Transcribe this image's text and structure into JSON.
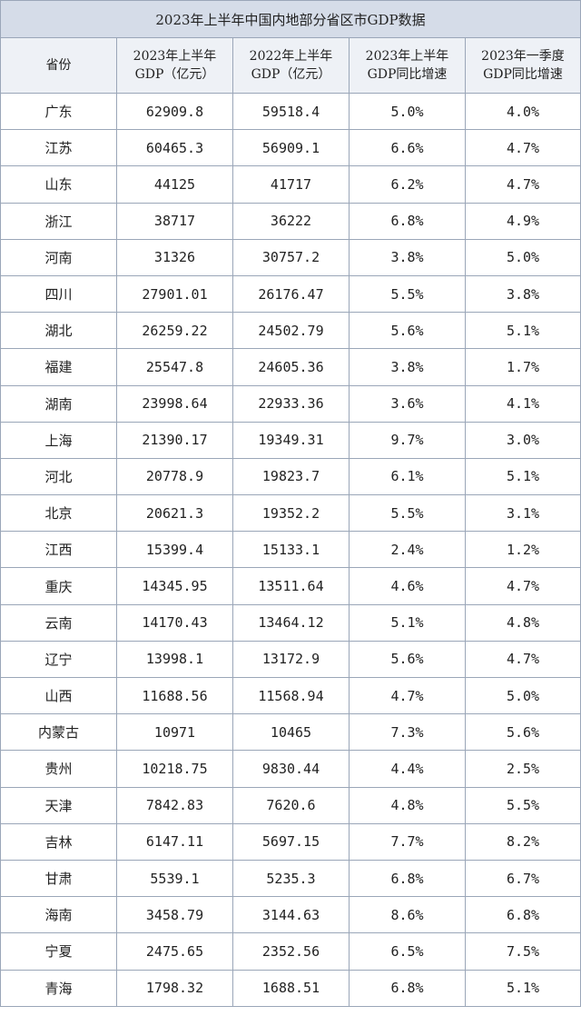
{
  "table": {
    "title": "2023年上半年中国内地部分省区市GDP数据",
    "headers": [
      {
        "line1": "省份",
        "line2": ""
      },
      {
        "line1": "2023年上半年",
        "line2": "GDP（亿元）"
      },
      {
        "line1": "2022年上半年",
        "line2": "GDP（亿元）"
      },
      {
        "line1": "2023年上半年",
        "line2": "GDP同比增速"
      },
      {
        "line1": "2023年一季度",
        "line2": "GDP同比增速"
      }
    ],
    "rows": [
      [
        "广东",
        "62909.8",
        "59518.4",
        "5.0%",
        "4.0%"
      ],
      [
        "江苏",
        "60465.3",
        "56909.1",
        "6.6%",
        "4.7%"
      ],
      [
        "山东",
        "44125",
        "41717",
        "6.2%",
        "4.7%"
      ],
      [
        "浙江",
        "38717",
        "36222",
        "6.8%",
        "4.9%"
      ],
      [
        "河南",
        "31326",
        "30757.2",
        "3.8%",
        "5.0%"
      ],
      [
        "四川",
        "27901.01",
        "26176.47",
        "5.5%",
        "3.8%"
      ],
      [
        "湖北",
        "26259.22",
        "24502.79",
        "5.6%",
        "5.1%"
      ],
      [
        "福建",
        "25547.8",
        "24605.36",
        "3.8%",
        "1.7%"
      ],
      [
        "湖南",
        "23998.64",
        "22933.36",
        "3.6%",
        "4.1%"
      ],
      [
        "上海",
        "21390.17",
        "19349.31",
        "9.7%",
        "3.0%"
      ],
      [
        "河北",
        "20778.9",
        "19823.7",
        "6.1%",
        "5.1%"
      ],
      [
        "北京",
        "20621.3",
        "19352.2",
        "5.5%",
        "3.1%"
      ],
      [
        "江西",
        "15399.4",
        "15133.1",
        "2.4%",
        "1.2%"
      ],
      [
        "重庆",
        "14345.95",
        "13511.64",
        "4.6%",
        "4.7%"
      ],
      [
        "云南",
        "14170.43",
        "13464.12",
        "5.1%",
        "4.8%"
      ],
      [
        "辽宁",
        "13998.1",
        "13172.9",
        "5.6%",
        "4.7%"
      ],
      [
        "山西",
        "11688.56",
        "11568.94",
        "4.7%",
        "5.0%"
      ],
      [
        "内蒙古",
        "10971",
        "10465",
        "7.3%",
        "5.6%"
      ],
      [
        "贵州",
        "10218.75",
        "9830.44",
        "4.4%",
        "2.5%"
      ],
      [
        "天津",
        "7842.83",
        "7620.6",
        "4.8%",
        "5.5%"
      ],
      [
        "吉林",
        "6147.11",
        "5697.15",
        "7.7%",
        "8.2%"
      ],
      [
        "甘肃",
        "5539.1",
        "5235.3",
        "6.8%",
        "6.7%"
      ],
      [
        "海南",
        "3458.79",
        "3144.63",
        "8.6%",
        "6.8%"
      ],
      [
        "宁夏",
        "2475.65",
        "2352.56",
        "6.5%",
        "7.5%"
      ],
      [
        "青海",
        "1798.32",
        "1688.51",
        "6.8%",
        "5.1%"
      ]
    ]
  }
}
